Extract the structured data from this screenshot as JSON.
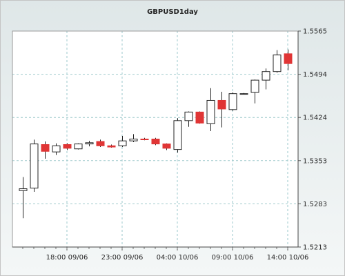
{
  "chart_data": {
    "type": "candlestick",
    "title": "GBPUSD1day",
    "x_tick_labels": [
      "18:00 09/06",
      "23:00 09/06",
      "04:00 10/06",
      "09:00 10/06",
      "14:00 10/06"
    ],
    "y_tick_labels": [
      "1.5213",
      "1.5283",
      "1.5353",
      "1.5424",
      "1.5494",
      "1.5565"
    ],
    "ylim": [
      1.5213,
      1.5565
    ],
    "grid": true,
    "colors": {
      "up": "#ffffff",
      "down": "#e03535",
      "wick": "#222222",
      "grid": "#9ec9cc"
    },
    "candles": [
      {
        "open": 1.5305,
        "high": 1.5327,
        "low": 1.526,
        "close": 1.5308
      },
      {
        "open": 1.5309,
        "high": 1.5388,
        "low": 1.5303,
        "close": 1.5381
      },
      {
        "open": 1.538,
        "high": 1.5385,
        "low": 1.5357,
        "close": 1.5369
      },
      {
        "open": 1.5368,
        "high": 1.5382,
        "low": 1.5363,
        "close": 1.5378
      },
      {
        "open": 1.538,
        "high": 1.5382,
        "low": 1.5371,
        "close": 1.5374
      },
      {
        "open": 1.5373,
        "high": 1.5382,
        "low": 1.5372,
        "close": 1.5381
      },
      {
        "open": 1.5381,
        "high": 1.5386,
        "low": 1.5377,
        "close": 1.5383
      },
      {
        "open": 1.5385,
        "high": 1.5388,
        "low": 1.5376,
        "close": 1.5378
      },
      {
        "open": 1.5378,
        "high": 1.538,
        "low": 1.5375,
        "close": 1.5376
      },
      {
        "open": 1.5378,
        "high": 1.5394,
        "low": 1.5376,
        "close": 1.5386
      },
      {
        "open": 1.5386,
        "high": 1.5397,
        "low": 1.5384,
        "close": 1.5389
      },
      {
        "open": 1.5389,
        "high": 1.5391,
        "low": 1.5387,
        "close": 1.5388
      },
      {
        "open": 1.5389,
        "high": 1.5391,
        "low": 1.5379,
        "close": 1.5381
      },
      {
        "open": 1.5381,
        "high": 1.5382,
        "low": 1.5371,
        "close": 1.5374
      },
      {
        "open": 1.5372,
        "high": 1.5423,
        "low": 1.5367,
        "close": 1.5419
      },
      {
        "open": 1.5419,
        "high": 1.5434,
        "low": 1.5409,
        "close": 1.5433
      },
      {
        "open": 1.5433,
        "high": 1.5434,
        "low": 1.5414,
        "close": 1.5415
      },
      {
        "open": 1.5414,
        "high": 1.5472,
        "low": 1.5402,
        "close": 1.5452
      },
      {
        "open": 1.5452,
        "high": 1.5466,
        "low": 1.5408,
        "close": 1.5438
      },
      {
        "open": 1.5437,
        "high": 1.5465,
        "low": 1.5435,
        "close": 1.5463
      },
      {
        "open": 1.5463,
        "high": 1.5464,
        "low": 1.5462,
        "close": 1.5463
      },
      {
        "open": 1.5465,
        "high": 1.5486,
        "low": 1.5447,
        "close": 1.5485
      },
      {
        "open": 1.5485,
        "high": 1.5504,
        "low": 1.547,
        "close": 1.5499
      },
      {
        "open": 1.5499,
        "high": 1.5534,
        "low": 1.5497,
        "close": 1.5526
      },
      {
        "open": 1.5528,
        "high": 1.5535,
        "low": 1.5501,
        "close": 1.5512
      }
    ]
  }
}
